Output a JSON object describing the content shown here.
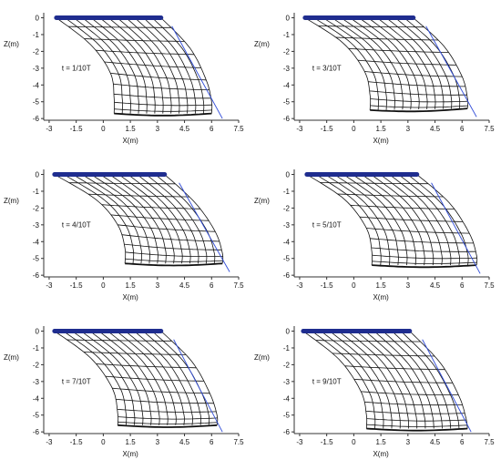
{
  "colors": {
    "mesh": "#111111",
    "rim": "#1f2d8f",
    "guide": "#2f4bd8",
    "axis": "#333333",
    "text": "#111111"
  },
  "chart_data": [
    {
      "type": "line",
      "time_label": "t = 1/10T",
      "xlabel": "X(m)",
      "ylabel": "Z(m)",
      "xlim": [
        -3.3,
        7.5
      ],
      "ylim": [
        -6.1,
        0.3
      ],
      "x_ticks": [
        -3,
        -1.5,
        0,
        1.5,
        3,
        4.5,
        6,
        7.5
      ],
      "y_ticks": [
        0,
        -1,
        -2,
        -3,
        -4,
        -5,
        -6
      ],
      "x_tick_labels": [
        "-3",
        "-1.5",
        "0",
        "1.5",
        "3",
        "4.5",
        "6",
        "7.5"
      ],
      "y_tick_labels": [
        "0",
        "-1",
        "-2",
        "-3",
        "-4",
        "-5",
        "-6"
      ],
      "grid": false,
      "net": {
        "top_x": [
          -2.6,
          3.2
        ],
        "inner_curve": [
          [
            -2.6,
            0
          ],
          [
            -0.7,
            -1.6
          ],
          [
            0.4,
            -3.3
          ],
          [
            0.6,
            -4.8
          ],
          [
            0.6,
            -5.7
          ]
        ],
        "outer_curve": [
          [
            3.2,
            0
          ],
          [
            4.8,
            -1.8
          ],
          [
            5.7,
            -3.7
          ],
          [
            6.0,
            -5.0
          ],
          [
            6.0,
            -5.7
          ]
        ],
        "rings": 10,
        "meridians": 12
      },
      "guide_line": [
        [
          3.8,
          -0.5
        ],
        [
          6.6,
          -6.0
        ]
      ]
    },
    {
      "type": "line",
      "time_label": "t = 3/10T",
      "xlabel": "X(m)",
      "ylabel": "Z(m)",
      "xlim": [
        -3.3,
        7.5
      ],
      "ylim": [
        -6.1,
        0.3
      ],
      "x_ticks": [
        -3,
        -1.5,
        0,
        1.5,
        3,
        4.5,
        6,
        7.5
      ],
      "y_ticks": [
        0,
        -1,
        -2,
        -3,
        -4,
        -5,
        -6
      ],
      "x_tick_labels": [
        "-3",
        "-1.5",
        "0",
        "1.5",
        "3",
        "4.5",
        "6",
        "7.5"
      ],
      "y_tick_labels": [
        "0",
        "-1",
        "-2",
        "-3",
        "-4",
        "-5",
        "-6"
      ],
      "grid": false,
      "net": {
        "top_x": [
          -2.7,
          3.3
        ],
        "inner_curve": [
          [
            -2.7,
            0
          ],
          [
            -0.6,
            -1.5
          ],
          [
            0.6,
            -3.2
          ],
          [
            0.9,
            -4.6
          ],
          [
            0.9,
            -5.5
          ]
        ],
        "outer_curve": [
          [
            3.3,
            0
          ],
          [
            5.0,
            -1.7
          ],
          [
            6.0,
            -3.5
          ],
          [
            6.3,
            -4.8
          ],
          [
            6.3,
            -5.4
          ]
        ],
        "rings": 10,
        "meridians": 12
      },
      "guide_line": [
        [
          4.0,
          -0.5
        ],
        [
          6.8,
          -5.9
        ]
      ]
    },
    {
      "type": "line",
      "time_label": "t = 4/10T",
      "xlabel": "X(m)",
      "ylabel": "Z(m)",
      "xlim": [
        -3.3,
        7.5
      ],
      "ylim": [
        -6.1,
        0.3
      ],
      "x_ticks": [
        -3,
        -1.5,
        0,
        1.5,
        3,
        4.5,
        6,
        7.5
      ],
      "y_ticks": [
        0,
        -1,
        -2,
        -3,
        -4,
        -5,
        -6
      ],
      "x_tick_labels": [
        "-3",
        "-1.5",
        "0",
        "1.5",
        "3",
        "4.5",
        "6",
        "7.5"
      ],
      "y_tick_labels": [
        "0",
        "-1",
        "-2",
        "-3",
        "-4",
        "-5",
        "-6"
      ],
      "grid": false,
      "net": {
        "top_x": [
          -2.7,
          3.4
        ],
        "inner_curve": [
          [
            -2.7,
            0
          ],
          [
            -0.4,
            -1.5
          ],
          [
            0.8,
            -3.0
          ],
          [
            1.2,
            -4.4
          ],
          [
            1.2,
            -5.3
          ]
        ],
        "outer_curve": [
          [
            3.4,
            0
          ],
          [
            5.1,
            -1.7
          ],
          [
            6.2,
            -3.4
          ],
          [
            6.6,
            -4.7
          ],
          [
            6.6,
            -5.3
          ]
        ],
        "rings": 10,
        "meridians": 12
      },
      "guide_line": [
        [
          4.2,
          -0.5
        ],
        [
          7.0,
          -5.8
        ]
      ]
    },
    {
      "type": "line",
      "time_label": "t = 5/10T",
      "xlabel": "X(m)",
      "ylabel": "Z(m)",
      "xlim": [
        -3.3,
        7.5
      ],
      "ylim": [
        -6.1,
        0.3
      ],
      "x_ticks": [
        -3,
        -1.5,
        0,
        1.5,
        3,
        4.5,
        6,
        7.5
      ],
      "y_ticks": [
        0,
        -1,
        -2,
        -3,
        -4,
        -5,
        -6
      ],
      "x_tick_labels": [
        "-3",
        "-1.5",
        "0",
        "1.5",
        "3",
        "4.5",
        "6",
        "7.5"
      ],
      "y_tick_labels": [
        "0",
        "-1",
        "-2",
        "-3",
        "-4",
        "-5",
        "-6"
      ],
      "grid": false,
      "net": {
        "top_x": [
          -2.6,
          3.5
        ],
        "inner_curve": [
          [
            -2.6,
            0
          ],
          [
            -0.5,
            -1.5
          ],
          [
            0.7,
            -3.2
          ],
          [
            1.0,
            -4.6
          ],
          [
            1.0,
            -5.4
          ]
        ],
        "outer_curve": [
          [
            3.5,
            0
          ],
          [
            5.3,
            -1.7
          ],
          [
            6.4,
            -3.5
          ],
          [
            6.8,
            -4.8
          ],
          [
            6.8,
            -5.4
          ]
        ],
        "rings": 10,
        "meridians": 12
      },
      "guide_line": [
        [
          4.3,
          -0.5
        ],
        [
          7.0,
          -5.9
        ]
      ]
    },
    {
      "type": "line",
      "time_label": "t = 7/10T",
      "xlabel": "X(m)",
      "ylabel": "Z(m)",
      "xlim": [
        -3.3,
        7.5
      ],
      "ylim": [
        -6.1,
        0.3
      ],
      "x_ticks": [
        -3,
        -1.5,
        0,
        1.5,
        3,
        4.5,
        6,
        7.5
      ],
      "y_ticks": [
        0,
        -1,
        -2,
        -3,
        -4,
        -5,
        -6
      ],
      "x_tick_labels": [
        "-3",
        "-1.5",
        "0",
        "1.5",
        "3",
        "4.5",
        "6",
        "7.5"
      ],
      "y_tick_labels": [
        "0",
        "-1",
        "-2",
        "-3",
        "-4",
        "-5",
        "-6"
      ],
      "grid": false,
      "net": {
        "top_x": [
          -2.7,
          3.2
        ],
        "inner_curve": [
          [
            -2.7,
            0
          ],
          [
            -0.7,
            -1.6
          ],
          [
            0.5,
            -3.4
          ],
          [
            0.8,
            -4.9
          ],
          [
            0.8,
            -5.6
          ]
        ],
        "outer_curve": [
          [
            3.2,
            0
          ],
          [
            4.9,
            -1.8
          ],
          [
            5.9,
            -3.7
          ],
          [
            6.3,
            -5.0
          ],
          [
            6.3,
            -5.6
          ]
        ],
        "rings": 10,
        "meridians": 12
      },
      "guide_line": [
        [
          3.9,
          -0.5
        ],
        [
          6.6,
          -6.0
        ]
      ]
    },
    {
      "type": "line",
      "time_label": "t = 9/10T",
      "xlabel": "X(m)",
      "ylabel": "Z(m)",
      "xlim": [
        -3.3,
        7.5
      ],
      "ylim": [
        -6.1,
        0.3
      ],
      "x_ticks": [
        -3,
        -1.5,
        0,
        1.5,
        3,
        4.5,
        6,
        7.5
      ],
      "y_ticks": [
        0,
        -1,
        -2,
        -3,
        -4,
        -5,
        -6
      ],
      "x_tick_labels": [
        "-3",
        "-1.5",
        "0",
        "1.5",
        "3",
        "4.5",
        "6",
        "7.5"
      ],
      "y_tick_labels": [
        "0",
        "-1",
        "-2",
        "-3",
        "-4",
        "-5",
        "-6"
      ],
      "grid": false,
      "net": {
        "top_x": [
          -2.8,
          3.1
        ],
        "inner_curve": [
          [
            -2.8,
            0
          ],
          [
            -0.8,
            -1.7
          ],
          [
            0.4,
            -3.6
          ],
          [
            0.7,
            -5.0
          ],
          [
            0.7,
            -5.8
          ]
        ],
        "outer_curve": [
          [
            3.1,
            0
          ],
          [
            4.8,
            -1.9
          ],
          [
            5.8,
            -3.8
          ],
          [
            6.2,
            -5.1
          ],
          [
            6.3,
            -5.8
          ]
        ],
        "rings": 10,
        "meridians": 12
      },
      "guide_line": [
        [
          3.8,
          -0.5
        ],
        [
          6.5,
          -6.0
        ]
      ]
    }
  ]
}
